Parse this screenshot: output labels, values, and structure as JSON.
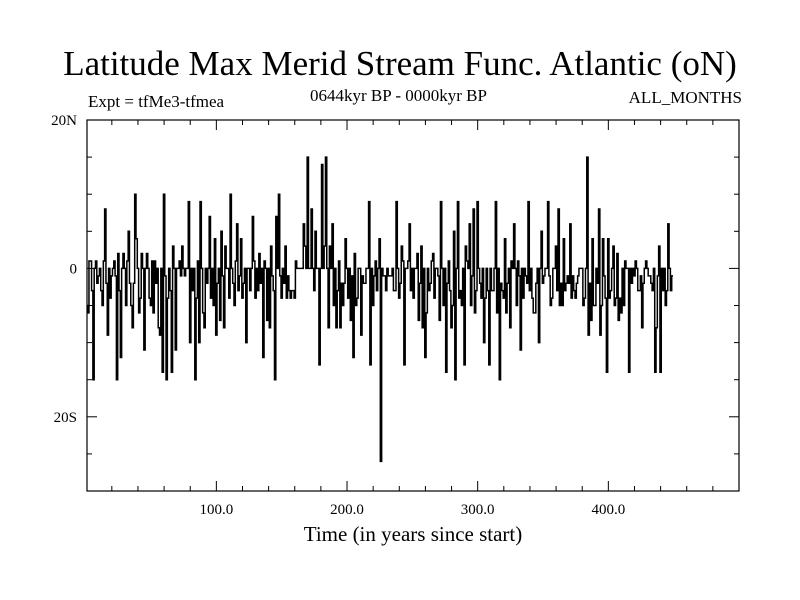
{
  "chart_data": {
    "type": "line",
    "title": "Latitude Max Merid Stream Func. Atlantic (oN)",
    "subtitle_left": "Expt = tfMe3-tfmea",
    "subtitle_center": "0644kyr BP - 0000kyr BP",
    "subtitle_right": "ALL_MONTHS",
    "xlabel": "Time (in years since start)",
    "ylabel": "",
    "xlim": [
      1,
      500
    ],
    "ylim": [
      -30,
      20
    ],
    "x_ticks": [
      100,
      200,
      300,
      400
    ],
    "x_tick_labels": [
      "100.0",
      "200.0",
      "300.0",
      "400.0"
    ],
    "y_ticks": [
      20,
      0,
      -20
    ],
    "y_tick_labels": [
      "20N",
      "0",
      "20S"
    ],
    "series": [
      {
        "x_start": 1,
        "x_step": 1,
        "values": [
          -5,
          -6,
          1,
          1,
          -3,
          -15,
          0,
          1,
          -2,
          -1,
          0,
          -3,
          -5,
          1,
          8,
          -2,
          -9,
          0,
          -4,
          -1,
          0,
          1,
          -1,
          -15,
          2,
          -3,
          -12,
          0,
          2,
          0,
          -5,
          1,
          5,
          -2,
          -5,
          -8,
          -2,
          10,
          4,
          0,
          -6,
          -4,
          2,
          0,
          -11,
          0,
          2,
          0,
          -4,
          -5,
          1,
          -6,
          1,
          -2,
          0,
          -8,
          -9,
          0,
          -14,
          10,
          -1,
          -15,
          -4,
          0,
          -3,
          -14,
          3,
          0,
          -11,
          0,
          0,
          1,
          -1,
          3,
          0,
          -1,
          0,
          0,
          9,
          -10,
          0,
          -3,
          0,
          -15,
          -4,
          1,
          -10,
          9,
          0,
          -6,
          -8,
          0,
          -2,
          0,
          7,
          -4,
          0,
          -5,
          4,
          -9,
          -2,
          0,
          -7,
          5,
          -1,
          -8,
          3,
          0,
          0,
          -4,
          10,
          0,
          -2,
          -5,
          1,
          6,
          -3,
          -1,
          4,
          -4,
          -2,
          0,
          -10,
          0,
          0,
          -3,
          0,
          7,
          1,
          -4,
          0,
          -3,
          2,
          -2,
          0,
          -12,
          1,
          0,
          -7,
          0,
          -8,
          3,
          -1,
          -3,
          -15,
          7,
          0,
          10,
          -1,
          -4,
          0,
          -2,
          3,
          -4,
          -1,
          -3,
          -4,
          -3,
          -3,
          -4,
          1,
          0,
          0,
          0,
          0,
          0,
          6,
          3,
          0,
          15,
          0,
          0,
          8,
          0,
          -3,
          5,
          0,
          0,
          -13,
          0,
          14,
          0,
          3,
          15,
          0,
          -8,
          3,
          0,
          6,
          -5,
          0,
          -8,
          -3,
          1,
          -8,
          -2,
          -5,
          -2,
          4,
          0,
          -4,
          0,
          -7,
          -1,
          -12,
          2,
          -5,
          -4,
          0,
          0,
          -9,
          -1,
          -2,
          -2,
          0,
          0,
          9,
          -13,
          0,
          -5,
          -1,
          1,
          -3,
          0,
          4,
          -26,
          0,
          -1,
          -1,
          -3,
          0,
          -1,
          -1,
          -1,
          0,
          -3,
          -3,
          9,
          0,
          -4,
          -2,
          3,
          1,
          -13,
          0,
          0,
          1,
          6,
          -3,
          0,
          -4,
          0,
          0,
          2,
          -7,
          -2,
          3,
          -8,
          0,
          -12,
          -6,
          0,
          -3,
          -2,
          1,
          2,
          -4,
          0,
          0,
          -1,
          -7,
          9,
          0,
          -5,
          0,
          -14,
          -2,
          1,
          -3,
          -8,
          -5,
          5,
          -15,
          0,
          9,
          -4,
          -3,
          -5,
          0,
          -13,
          3,
          1,
          0,
          6,
          -5,
          -1,
          8,
          -6,
          -3,
          9,
          0,
          -2,
          -4,
          0,
          -10,
          -4,
          0,
          -3,
          -13,
          0,
          -3,
          -3,
          0,
          9,
          -6,
          0,
          -15,
          -2,
          -3,
          -4,
          4,
          -6,
          -2,
          0,
          -8,
          1,
          0,
          6,
          0,
          -5,
          1,
          -1,
          -11,
          0,
          -4,
          0,
          -1,
          -2,
          9,
          -3,
          0,
          -4,
          -6,
          -6,
          -2,
          0,
          -10,
          0,
          5,
          -2,
          -1,
          0,
          0,
          9,
          -1,
          -5,
          -4,
          0,
          0,
          3,
          -3,
          8,
          -5,
          -2,
          -5,
          4,
          -3,
          -2,
          -1,
          -2,
          6,
          -4,
          -1,
          -3,
          -4,
          -2,
          -1,
          0,
          0,
          0,
          -5,
          -4,
          0,
          15,
          -9,
          -2,
          -7,
          4,
          -5,
          -5,
          0,
          -2,
          8,
          -9,
          -5,
          4,
          -1,
          -4,
          -14,
          4,
          -4,
          -3,
          0,
          3,
          -5,
          -4,
          2,
          -7,
          -4,
          -6,
          0,
          -5,
          1,
          0,
          0,
          -14,
          0,
          -2,
          0,
          -1,
          1,
          0,
          -3,
          -3,
          -1,
          -8,
          -2,
          0,
          1,
          0,
          -1,
          -1,
          -2,
          -3,
          0,
          -14,
          -8,
          -1,
          3,
          -14,
          0,
          -3,
          0,
          -5,
          -3,
          6,
          0,
          -3,
          -1
        ]
      }
    ],
    "colors": {
      "line": "#000000",
      "background": "#ffffff",
      "frame": "#000000"
    }
  }
}
